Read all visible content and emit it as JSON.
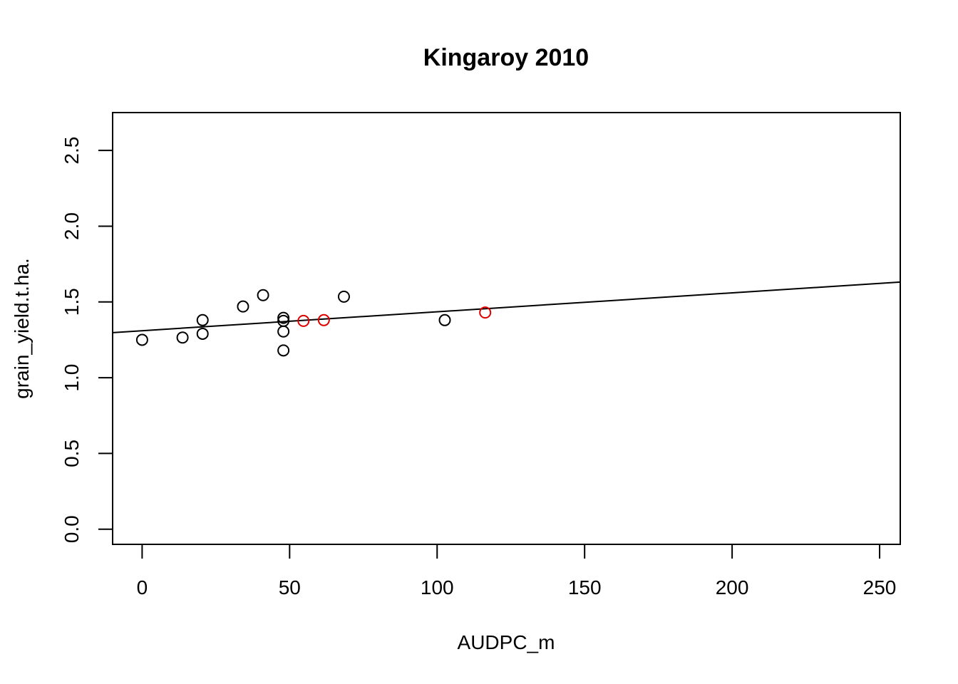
{
  "chart_data": {
    "type": "scatter",
    "title": "Kingaroy 2010",
    "xlabel": "AUDPC_m",
    "ylabel": "grain_yield.t.ha.",
    "xlim": [
      -10,
      257
    ],
    "ylim": [
      -0.1,
      2.75
    ],
    "x_ticks": [
      0,
      50,
      100,
      150,
      200,
      250
    ],
    "x_tick_labels": [
      "0",
      "50",
      "100",
      "150",
      "200",
      "250"
    ],
    "y_ticks": [
      0.0,
      0.5,
      1.0,
      1.5,
      2.0,
      2.5
    ],
    "y_tick_labels": [
      "0.0",
      "0.5",
      "1.0",
      "1.5",
      "2.0",
      "2.5"
    ],
    "grid": false,
    "colors": {
      "default_point": "#000000",
      "highlight_point": "#dd0000",
      "line": "#000000"
    },
    "points": [
      {
        "x": 0,
        "y": 1.25,
        "color": "#000000"
      },
      {
        "x": 13.7,
        "y": 1.265,
        "color": "#000000"
      },
      {
        "x": 20.5,
        "y": 1.38,
        "color": "#000000"
      },
      {
        "x": 20.5,
        "y": 1.29,
        "color": "#000000"
      },
      {
        "x": 34.2,
        "y": 1.47,
        "color": "#000000"
      },
      {
        "x": 41.0,
        "y": 1.545,
        "color": "#000000"
      },
      {
        "x": 47.9,
        "y": 1.395,
        "color": "#000000"
      },
      {
        "x": 47.9,
        "y": 1.375,
        "color": "#000000"
      },
      {
        "x": 47.9,
        "y": 1.305,
        "color": "#000000"
      },
      {
        "x": 47.9,
        "y": 1.18,
        "color": "#000000"
      },
      {
        "x": 54.7,
        "y": 1.375,
        "color": "#dd0000"
      },
      {
        "x": 61.6,
        "y": 1.38,
        "color": "#dd0000"
      },
      {
        "x": 68.4,
        "y": 1.535,
        "color": "#000000"
      },
      {
        "x": 102.6,
        "y": 1.38,
        "color": "#000000"
      },
      {
        "x": 116.3,
        "y": 1.43,
        "color": "#dd0000"
      }
    ],
    "regression_line": {
      "intercept": 1.31,
      "slope": 0.00125
    }
  }
}
